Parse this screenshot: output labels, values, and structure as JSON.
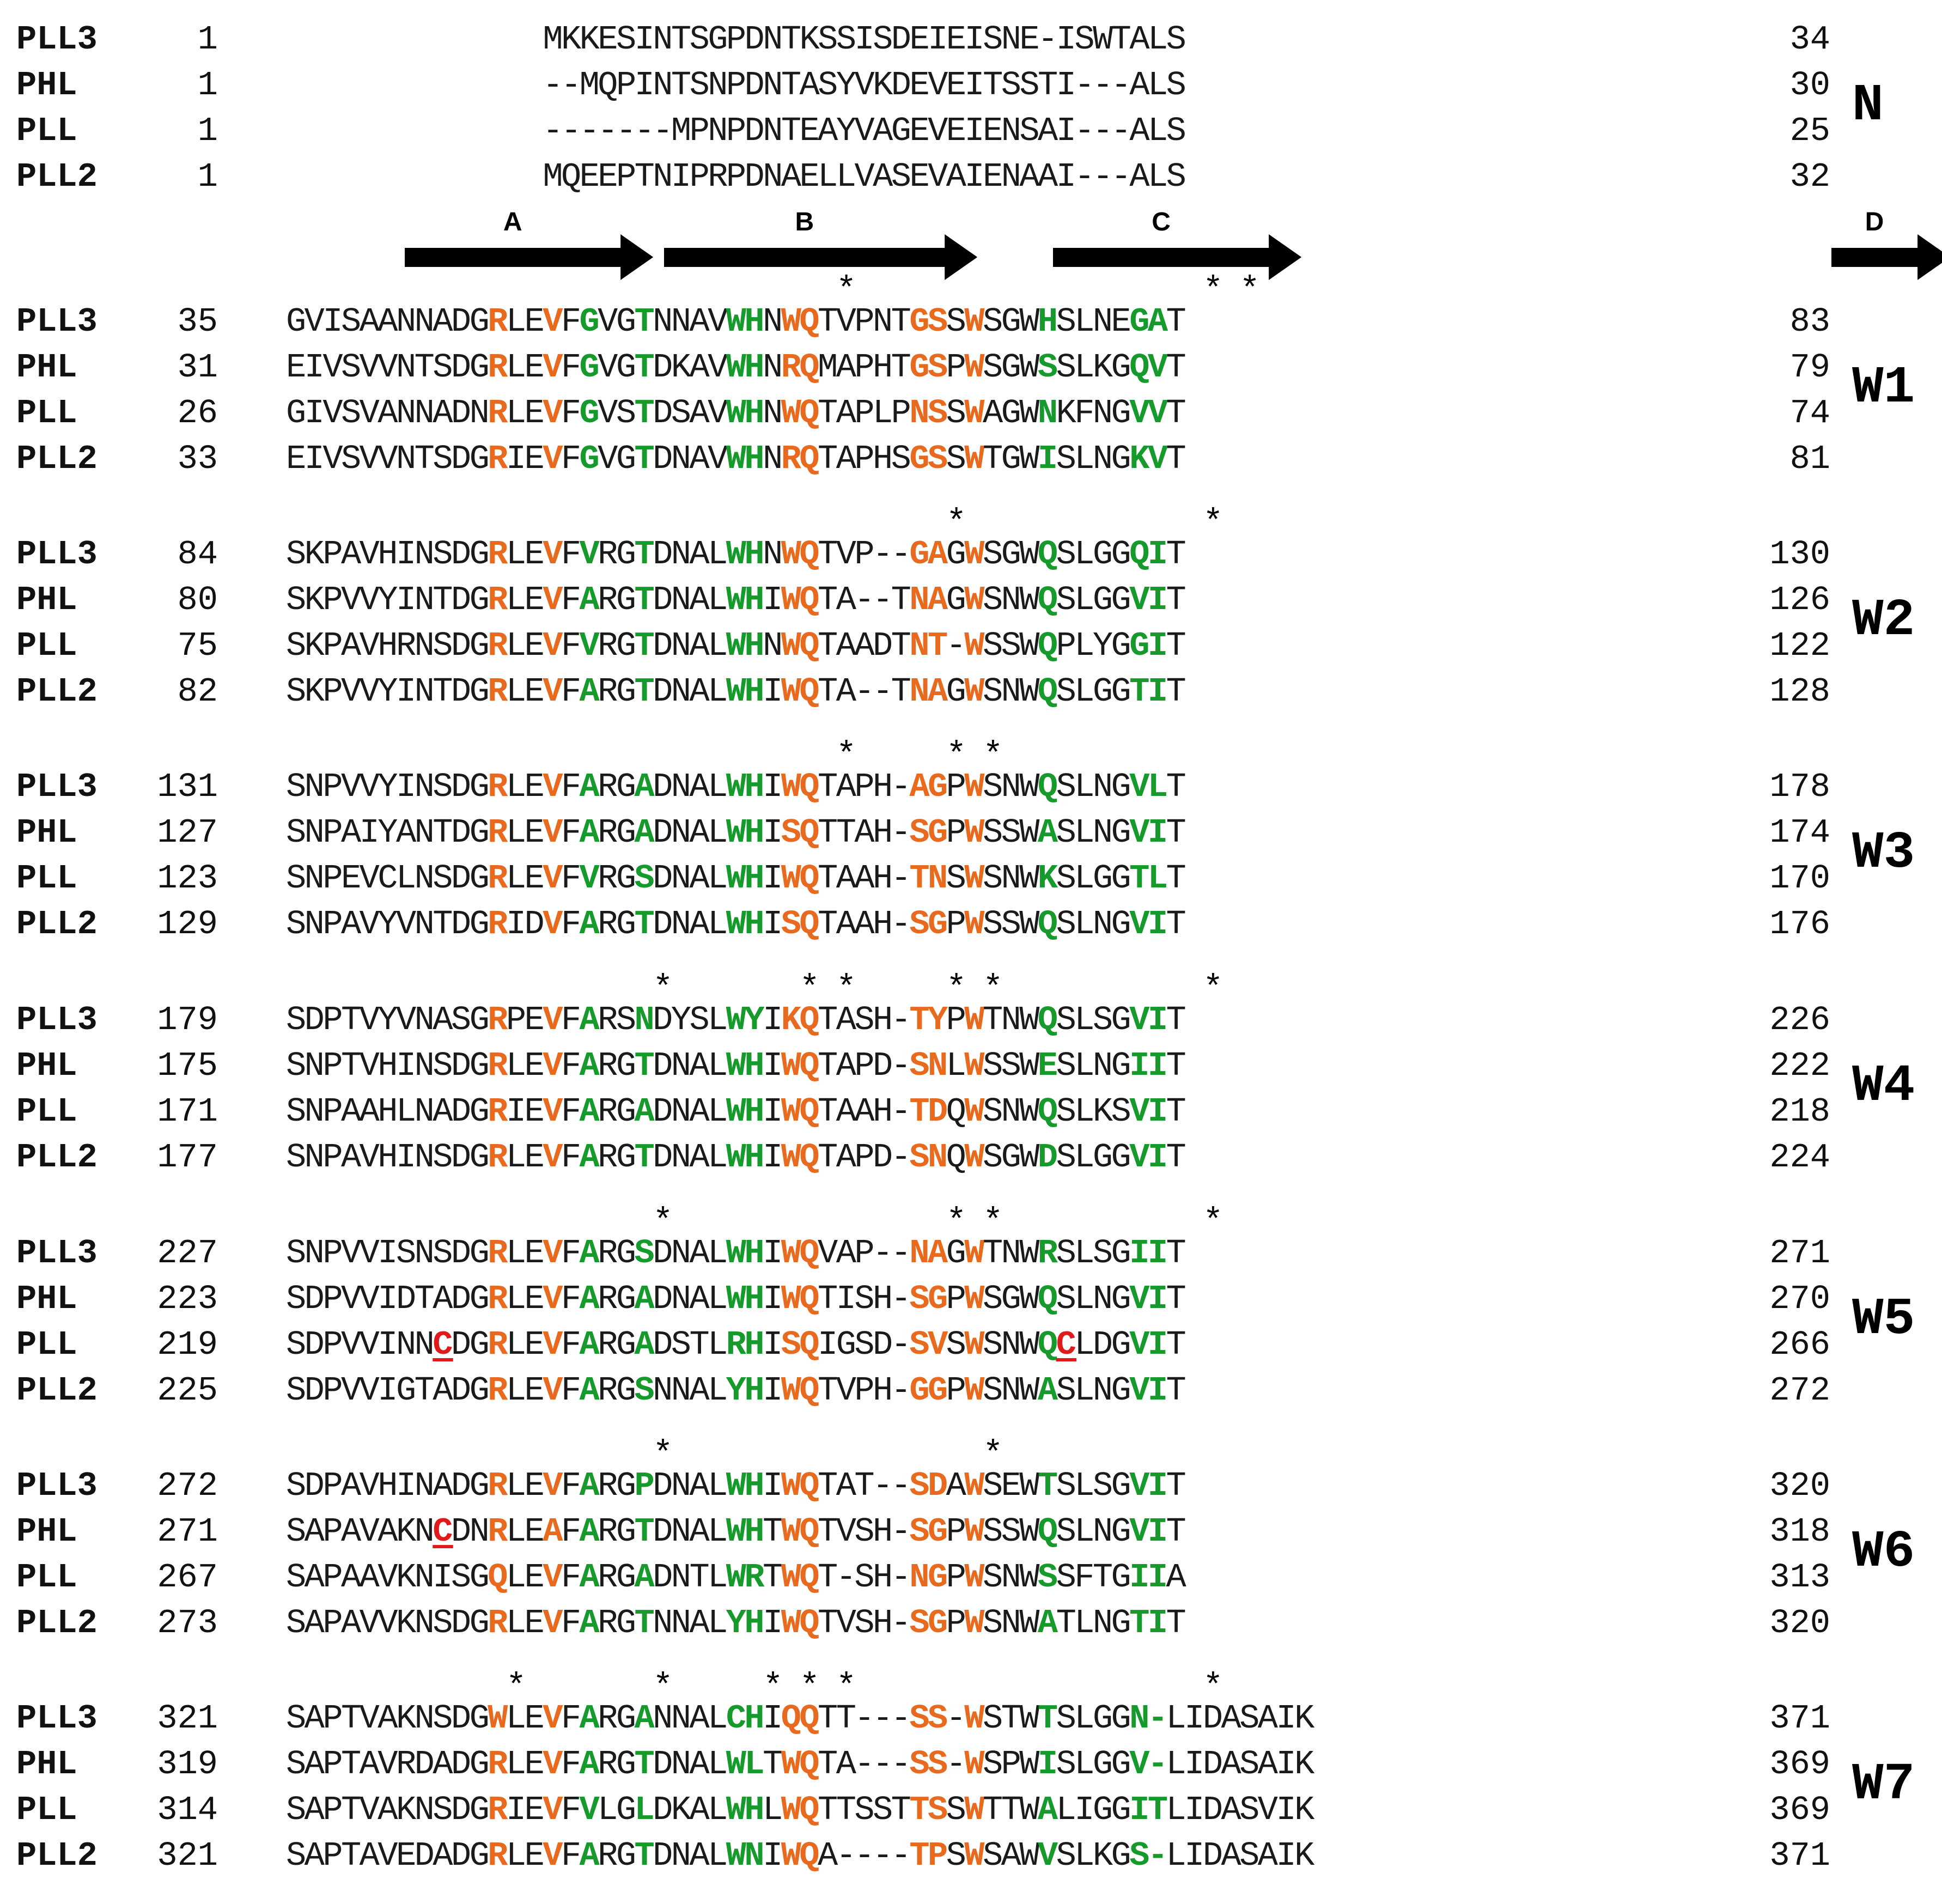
{
  "arrows": [
    {
      "label": "A",
      "c0": 2,
      "c1": 6
    },
    {
      "label": "B",
      "c0": 6,
      "c1": 11
    },
    {
      "label": "C",
      "c0": 12,
      "c1": 16
    },
    {
      "label": "D",
      "c0": 24,
      "c1": 26
    }
  ],
  "blocks": [
    {
      "label": "N",
      "startcol": 7,
      "stars": [],
      "rows": [
        {
          "name": "PLL3",
          "start": "1",
          "end": "34",
          "seq": "MKKESINTSGPDNTKSSISDEIEISNE-ISWTALS",
          "marks": ""
        },
        {
          "name": "PHL",
          "start": "1",
          "end": "30",
          "seq": "--MQPINTSNPDNTASYVKDEVEITSSTI---ALS",
          "marks": ""
        },
        {
          "name": "PLL",
          "start": "1",
          "end": "25",
          "seq": "-------MPNPDNTEAYVAGEVEIENSAI---ALS",
          "marks": ""
        },
        {
          "name": "PLL2",
          "start": "1",
          "end": "32",
          "seq": "MQEEPTNIPRPDNAELLVASEVAIENAAI---ALS",
          "marks": ""
        }
      ]
    },
    {
      "label": "W1",
      "startcol": 0,
      "stars": [
        15,
        25,
        26
      ],
      "rows": [
        {
          "name": "PLL3",
          "start": "35",
          "end": "83",
          "seq": "GVISAANNADGRLEVFGVGTNNAVWHNWQTVPNTGSSWSGWHSLNEGAT",
          "marks": "...........o..o.g..g....gg.oo.....oo.o...g....gg.."
        },
        {
          "name": "PHL",
          "start": "31",
          "end": "79",
          "seq": "EIVSVVNTSDGRLEVFGVGTDKAVWHNRQMAPHTGSPWSGWSSLKGQVT",
          "marks": "...........o..o.g..g....gg.oo.....oo.o...g....gg.."
        },
        {
          "name": "PLL",
          "start": "26",
          "end": "74",
          "seq": "GIVSVANNADNRLEVFGVSTDSAVWHNWQTAPLPNSSWAGWNKFNGVVT",
          "marks": "...........o..o.g..g....gg.oo.....oo.o...g....gg.."
        },
        {
          "name": "PLL2",
          "start": "33",
          "end": "81",
          "seq": "EIVSVVNTSDGRIEVFGVGTDNAVWHNRQTAPHSGSSWTGWISLNGKVT",
          "marks": "...........o..o.g..g....gg.oo.....oo.o...g....gg.."
        }
      ]
    },
    {
      "label": "W2",
      "startcol": 0,
      "stars": [
        18,
        25
      ],
      "rows": [
        {
          "name": "PLL3",
          "start": "84",
          "end": "130",
          "seq": "SKPAVHINSDGRLEVFVRGTDNALWHNWQTVP--GAGWSGWQSLGGQIT",
          "marks": "...........o..o.g..g....gg.oo.....oo.o...g....gg.."
        },
        {
          "name": "PHL",
          "start": "80",
          "end": "126",
          "seq": "SKPVVYINTDGRLEVFARGTDNALWHIWQTA--TNAGWSNWQSLGGVIT",
          "marks": "...........o..o.g..g....gg.oo.....oo.o...g....gg.."
        },
        {
          "name": "PLL",
          "start": "75",
          "end": "122",
          "seq": "SKPAVHRNSDGRLEVFVRGTDNALWHNWQTAADTNT-WSSWQPLYGGIT",
          "marks": "...........o..o.g..g....gg.oo.....oo.o...g....gg.."
        },
        {
          "name": "PLL2",
          "start": "82",
          "end": "128",
          "seq": "SKPVVYINTDGRLEVFARGTDNALWHIWQTA--TNAGWSNWQSLGGTIT",
          "marks": "...........o..o.g..g....gg.oo.....oo.o...g....gg.."
        }
      ]
    },
    {
      "label": "W3",
      "startcol": 0,
      "stars": [
        15,
        18,
        19
      ],
      "rows": [
        {
          "name": "PLL3",
          "start": "131",
          "end": "178",
          "seq": "SNPVVYINSDGRLEVFARGADNALWHIWQTAPH-AGPWSNWQSLNGVLT",
          "marks": "...........o..o.g..g....gg.oo.....oo.o...g....gg.."
        },
        {
          "name": "PHL",
          "start": "127",
          "end": "174",
          "seq": "SNPAIYANTDGRLEVFARGADNALWHISQTTAH-SGPWSSWASLNGVIT",
          "marks": "...........o..o.g..g....gg.oo.....oo.o...g....gg.."
        },
        {
          "name": "PLL",
          "start": "123",
          "end": "170",
          "seq": "SNPEVCLNSDGRLEVFVRGSDNALWHIWQTAAH-TNSWSNWKSLGGTLT",
          "marks": "...........o..o.g..g....gg.oo.....oo.o...g....gg.."
        },
        {
          "name": "PLL2",
          "start": "129",
          "end": "176",
          "seq": "SNPAVYVNTDGRIDVFARGTDNALWHISQTAAH-SGPWSSWQSLNGVIT",
          "marks": "...........o..o.g..g....gg.oo.....oo.o...g....gg.."
        }
      ]
    },
    {
      "label": "W4",
      "startcol": 0,
      "stars": [
        10,
        14,
        15,
        18,
        19,
        25
      ],
      "rows": [
        {
          "name": "PLL3",
          "start": "179",
          "end": "226",
          "seq": "SDPTVYVNASGRPEVFARSNDYSLWYIKQTASH-TYPWTNWQSLSGVIT",
          "marks": "...........o..o.g..g....gg.oo.....oo.o...g....gg.."
        },
        {
          "name": "PHL",
          "start": "175",
          "end": "222",
          "seq": "SNPTVHINSDGRLEVFARGTDNALWHIWQTAPD-SNLWSSWESLNGIIT",
          "marks": "...........o..o.g..g....gg.oo.....oo.o...g....gg.."
        },
        {
          "name": "PLL",
          "start": "171",
          "end": "218",
          "seq": "SNPAAHLNADGRIEVFARGADNALWHIWQTAAH-TDQWSNWQSLKSVIT",
          "marks": "...........o..o.g..g....gg.oo.....oo.o...g....gg.."
        },
        {
          "name": "PLL2",
          "start": "177",
          "end": "224",
          "seq": "SNPAVHINSDGRLEVFARGTDNALWHIWQTAPD-SNQWSGWDSLGGVIT",
          "marks": "...........o..o.g..g....gg.oo.....oo.o...g....gg.."
        }
      ]
    },
    {
      "label": "W5",
      "startcol": 0,
      "stars": [
        10,
        18,
        19,
        25
      ],
      "rows": [
        {
          "name": "PLL3",
          "start": "227",
          "end": "271",
          "seq": "SNPVVISNSDGRLEVFARGSDNALWHIWQVAP--NAGWTNWRSLSGIIT",
          "marks": "...........o..o.g..g....gg.oo.....oo.o...g....gg.."
        },
        {
          "name": "PHL",
          "start": "223",
          "end": "270",
          "seq": "SDPVVIDTADGRLEVFARGADNALWHIWQTISH-SGPWSGWQSLNGVIT",
          "marks": "...........o..o.g..g....gg.oo.....oo.o...g....gg.."
        },
        {
          "name": "PLL",
          "start": "219",
          "end": "266",
          "seq": "SDPVVINNCDGRLEVFARGADSTLRHISQIGSD-SVSWSNWQCLDGVIT",
          "marks": "........r..o..o.g..g....gg.oo.....oo.o...gr...gg.."
        },
        {
          "name": "PLL2",
          "start": "225",
          "end": "272",
          "seq": "SDPVVIGTADGRLEVFARGSNNALYHIWQTVPH-GGPWSNWASLNGVIT",
          "marks": "...........o..o.g..g....gg.oo.....oo.o...g....gg.."
        }
      ]
    },
    {
      "label": "W6",
      "startcol": 0,
      "stars": [
        10,
        19
      ],
      "rows": [
        {
          "name": "PLL3",
          "start": "272",
          "end": "320",
          "seq": "SDPAVHINADGRLEVFARGPDNALWHIWQTAT--SDAWSEWTSLSGVIT",
          "marks": "...........o..o.g..g....gg.oo.....oo.o...g....gg.."
        },
        {
          "name": "PHL",
          "start": "271",
          "end": "318",
          "seq": "SAPAVAKNCDNRLEAFARGTDNALWHTWQTVSH-SGPWSSWQSLNGVIT",
          "marks": "........r..o..o.g..g....gg.oo.....oo.o...g....gg.."
        },
        {
          "name": "PLL",
          "start": "267",
          "end": "313",
          "seq": "SAPAAVKNISGQLEVFARGADNTLWRTWQT-SH-NGPWSNWSSFTGIIA",
          "marks": "...........o..o.g..g....gg.oo.....oo.o...g....gg.."
        },
        {
          "name": "PLL2",
          "start": "273",
          "end": "320",
          "seq": "SAPAVVKNSDGRLEVFARGTNNALYHIWQTVSH-SGPWSNWATLNGTIT",
          "marks": "...........o..o.g..g....gg.oo.....oo.o...g....gg.."
        }
      ]
    },
    {
      "label": "W7",
      "startcol": 0,
      "stars": [
        6,
        10,
        13,
        14,
        15,
        25
      ],
      "rows": [
        {
          "name": "PLL3",
          "start": "321",
          "end": "371",
          "seq": "SAPTVAKNSDGWLEVFARGANNALCHIQQTT---SS-WSTWTSLGGN-LIDASAIK",
          "marks": "...........o..o.g..g....gg.oo.....oo.o...g....gg........."
        },
        {
          "name": "PHL",
          "start": "319",
          "end": "369",
          "seq": "SAPTAVRDADGRLEVFARGTDNALWLTWQTA---SS-WSPWISLGGV-LIDASAIK",
          "marks": "...........o..o.g..g....gg.oo.....oo.o...g....gg........."
        },
        {
          "name": "PLL",
          "start": "314",
          "end": "369",
          "seq": "SAPTVAKNSDGRIEVFVLGLDKALWHLWQTTSSTTSSWTTWALIGGITLIDASVIK",
          "marks": "...........o..o.g..g....gg.oo.....oo.o...g....gg........."
        },
        {
          "name": "PLL2",
          "start": "321",
          "end": "371",
          "seq": "SAPTAVEDADGRLEVFARGTDNALWNIWQA----TPSWSAWVSLKGS-LIDASAIK",
          "marks": "...........o..o.g..g....gg.oo.....oo.o...g....gg........."
        }
      ]
    }
  ]
}
